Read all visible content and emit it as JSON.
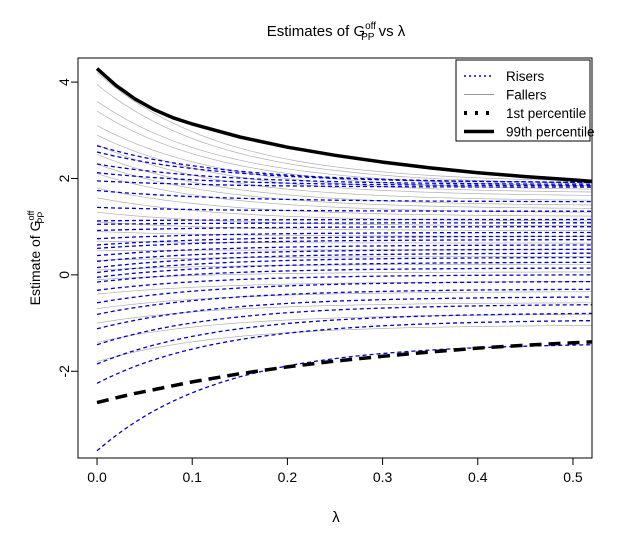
{
  "chart_data": {
    "type": "line",
    "title": {
      "main": "Estimates of G",
      "sup": "off",
      "sub": "PP",
      "suffix": " vs λ"
    },
    "xlabel": "λ",
    "ylabel": {
      "main": "Estimate of G",
      "sup": "off",
      "sub": "PP"
    },
    "xlim": [
      -0.02,
      0.52
    ],
    "ylim": [
      -3.8,
      4.5
    ],
    "x_ticks": [
      0.0,
      0.1,
      0.2,
      0.3,
      0.4,
      0.5
    ],
    "x_tick_labels": [
      "0.0",
      "0.1",
      "0.2",
      "0.3",
      "0.4",
      "0.5"
    ],
    "y_ticks": [
      -2,
      0,
      2,
      4
    ],
    "y_tick_labels": [
      "-2",
      "0",
      "2",
      "4"
    ],
    "grid": false,
    "legend_position": "top-right",
    "colors": {
      "risers": "#0000cc",
      "fallers": "#b0b0b0",
      "percentile": "#000000"
    },
    "legend": [
      {
        "label": "Risers",
        "style": "dotted",
        "color": "#0000cc"
      },
      {
        "label": "Fallers",
        "style": "solid-thin",
        "color": "#999999"
      },
      {
        "label": "1st percentile",
        "style": "dotted-bold",
        "color": "#000000"
      },
      {
        "label": "99th percentile",
        "style": "solid-bold",
        "color": "#000000"
      }
    ],
    "lambda": [
      0.0,
      0.02,
      0.04,
      0.06,
      0.08,
      0.1,
      0.15,
      0.2,
      0.25,
      0.3,
      0.35,
      0.4,
      0.45,
      0.5,
      0.52
    ],
    "percentile_99": [
      4.28,
      3.93,
      3.65,
      3.43,
      3.26,
      3.13,
      2.86,
      2.65,
      2.48,
      2.34,
      2.22,
      2.12,
      2.04,
      1.97,
      1.94
    ],
    "percentile_1": [
      -2.65,
      -2.55,
      -2.46,
      -2.38,
      -2.3,
      -2.22,
      -2.05,
      -1.91,
      -1.79,
      -1.69,
      -1.6,
      -1.52,
      -1.46,
      -1.41,
      -1.39
    ],
    "risers": [
      {
        "start": -3.65,
        "end": -1.45
      },
      {
        "start": -2.25,
        "end": -0.95
      },
      {
        "start": -1.85,
        "end": -0.8
      },
      {
        "start": -1.45,
        "end": -0.62
      },
      {
        "start": -1.12,
        "end": -0.46
      },
      {
        "start": -0.82,
        "end": -0.3
      },
      {
        "start": -0.58,
        "end": -0.14
      },
      {
        "start": -0.32,
        "end": 0.0
      },
      {
        "start": -0.15,
        "end": 0.14
      },
      {
        "start": -0.05,
        "end": 0.26
      },
      {
        "start": 0.05,
        "end": 0.36
      },
      {
        "start": 0.15,
        "end": 0.45
      },
      {
        "start": 0.28,
        "end": 0.53
      },
      {
        "start": 0.4,
        "end": 0.62
      },
      {
        "start": 0.55,
        "end": 0.73
      },
      {
        "start": 0.75,
        "end": 0.88
      },
      {
        "start": 0.92,
        "end": 1.0
      },
      {
        "start": 1.12,
        "end": 1.15
      },
      {
        "start": 1.4,
        "end": 1.32
      },
      {
        "start": 1.75,
        "end": 1.52
      },
      {
        "start": 1.95,
        "end": 1.82
      },
      {
        "start": 2.12,
        "end": 1.85
      },
      {
        "start": 2.3,
        "end": 1.88
      },
      {
        "start": 2.55,
        "end": 1.92
      },
      {
        "start": 2.68,
        "end": 1.92
      },
      {
        "start": 1.05,
        "end": 1.08
      },
      {
        "start": 0.62,
        "end": 0.8
      }
    ],
    "fallers": [
      {
        "start": 4.2,
        "end": 1.95
      },
      {
        "start": 3.95,
        "end": 1.9
      },
      {
        "start": 3.6,
        "end": 1.85
      },
      {
        "start": 3.4,
        "end": 1.78
      },
      {
        "start": 3.1,
        "end": 1.72
      },
      {
        "start": 2.9,
        "end": 1.65
      },
      {
        "start": 2.7,
        "end": 1.55
      },
      {
        "start": 2.5,
        "end": 1.45
      },
      {
        "start": 2.3,
        "end": 1.38
      },
      {
        "start": 2.1,
        "end": 1.3
      },
      {
        "start": 1.8,
        "end": 1.22
      },
      {
        "start": 1.6,
        "end": 1.12
      },
      {
        "start": 1.3,
        "end": 1.02
      },
      {
        "start": 1.1,
        "end": 0.92
      },
      {
        "start": 0.9,
        "end": 0.8
      },
      {
        "start": 0.7,
        "end": 0.66
      },
      {
        "start": 0.5,
        "end": 0.52
      },
      {
        "start": 0.3,
        "end": 0.38
      },
      {
        "start": 0.1,
        "end": 0.22
      },
      {
        "start": -0.1,
        "end": 0.06
      },
      {
        "start": -0.4,
        "end": -0.14
      },
      {
        "start": -0.7,
        "end": -0.35
      },
      {
        "start": -1.0,
        "end": -0.58
      },
      {
        "start": -1.4,
        "end": -0.82
      },
      {
        "start": -1.8,
        "end": -1.05
      }
    ]
  }
}
